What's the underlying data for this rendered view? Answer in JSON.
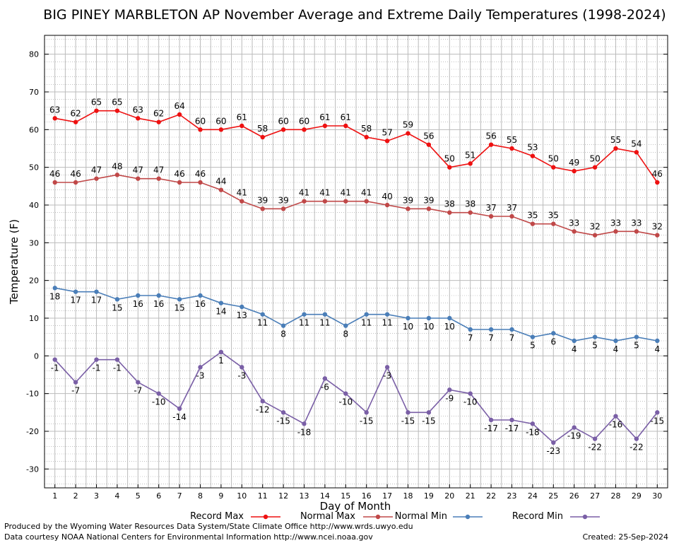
{
  "chart_data": {
    "type": "line",
    "title": "BIG PINEY MARBLETON AP November Average and Extreme Daily Temperatures (1998-2024)",
    "xlabel": "Day of Month",
    "ylabel": "Temperature (F)",
    "ylim": [
      -35,
      85
    ],
    "yticks": [
      -30,
      -20,
      -10,
      0,
      10,
      20,
      30,
      40,
      50,
      60,
      70,
      80
    ],
    "xlim": [
      0.5,
      30.5
    ],
    "grid": true,
    "legend_position": "bottom",
    "x": [
      1,
      2,
      3,
      4,
      5,
      6,
      7,
      8,
      9,
      10,
      11,
      12,
      13,
      14,
      15,
      16,
      17,
      18,
      19,
      20,
      21,
      22,
      23,
      24,
      25,
      26,
      27,
      28,
      29,
      30
    ],
    "series": [
      {
        "name": "Record Max",
        "color": "#ee1111",
        "values": [
          63,
          62,
          65,
          65,
          63,
          62,
          64,
          60,
          60,
          61,
          58,
          60,
          60,
          61,
          61,
          58,
          57,
          59,
          56,
          50,
          51,
          56,
          55,
          53,
          50,
          49,
          50,
          55,
          54,
          46
        ]
      },
      {
        "name": "Normal Max",
        "color": "#c04848",
        "values": [
          46,
          46,
          47,
          48,
          47,
          47,
          46,
          46,
          44,
          41,
          39,
          39,
          41,
          41,
          41,
          41,
          40,
          39,
          39,
          38,
          38,
          37,
          37,
          35,
          35,
          33,
          32,
          33,
          33,
          32
        ]
      },
      {
        "name": "Normal Min",
        "color": "#4a7eb8",
        "values": [
          18,
          17,
          17,
          15,
          16,
          16,
          15,
          16,
          14,
          13,
          11,
          8,
          11,
          11,
          8,
          11,
          11,
          10,
          10,
          10,
          7,
          7,
          7,
          5,
          6,
          4,
          5,
          4,
          5,
          4
        ]
      },
      {
        "name": "Record Min",
        "color": "#7a5fa6",
        "values": [
          -1,
          -7,
          -1,
          -1,
          -7,
          -10,
          -14,
          -3,
          1,
          -3,
          -12,
          -15,
          -18,
          -6,
          -10,
          -15,
          -3,
          -15,
          -15,
          -9,
          -10,
          -17,
          -17,
          -18,
          -23,
          -19,
          -22,
          -16,
          -22,
          -15
        ]
      }
    ]
  },
  "footer": {
    "line1": "Produced by the Wyoming Water Resources Data System/State Climate Office http://www.wrds.uwyo.edu",
    "line2": "Data courtesy NOAA National Centers for Environmental Information http://www.ncei.noaa.gov",
    "created": "Created:  25-Sep-2024"
  }
}
